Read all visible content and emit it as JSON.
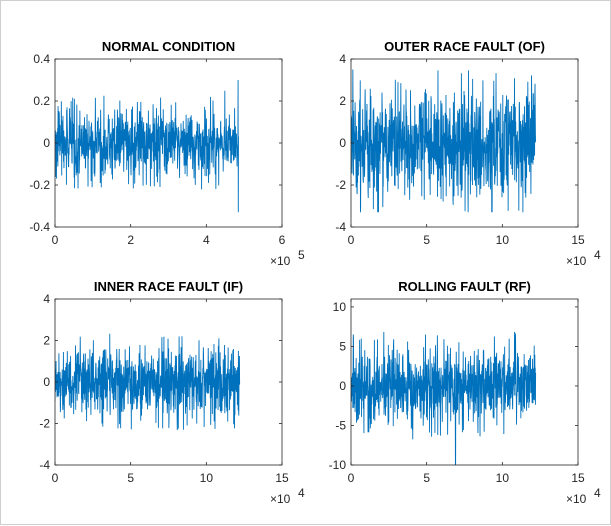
{
  "chart_data": [
    {
      "type": "line",
      "title": "NORMAL CONDITION",
      "series_color": "#0072bd",
      "x_exponent_label": "×10",
      "x_exponent": "5",
      "xlim": [
        0,
        6
      ],
      "ylim": [
        -0.4,
        0.4
      ],
      "x_ticks": [
        "0",
        "2",
        "4",
        "6"
      ],
      "y_ticks": [
        "-0.4",
        "-0.2",
        "0",
        "0.2",
        "0.4"
      ],
      "x_tick_values": [
        0,
        2,
        4,
        6
      ],
      "y_tick_values": [
        -0.4,
        -0.2,
        0,
        0.2,
        0.4
      ],
      "signal": {
        "x_end": 4.85,
        "band": 0.18,
        "peak": 0.3,
        "min_peak": -0.33,
        "spike_x": 4.85
      }
    },
    {
      "type": "line",
      "title": "OUTER RACE FAULT (OF)",
      "series_color": "#0072bd",
      "x_exponent_label": "×10",
      "x_exponent": "4",
      "xlim": [
        0,
        15
      ],
      "ylim": [
        -4,
        4
      ],
      "x_ticks": [
        "0",
        "5",
        "10",
        "15"
      ],
      "y_ticks": [
        "-4",
        "-2",
        "0",
        "2",
        "4"
      ],
      "x_tick_values": [
        0,
        5,
        10,
        15
      ],
      "y_tick_values": [
        -4,
        -2,
        0,
        2,
        4
      ],
      "signal": {
        "x_end": 12.2,
        "band": 2.9,
        "peak": 3.5,
        "min_peak": -3.3,
        "spike_x": 0
      }
    },
    {
      "type": "line",
      "title": "INNER RACE FAULT (IF)",
      "series_color": "#0072bd",
      "x_exponent_label": "×10",
      "x_exponent": "4",
      "xlim": [
        0,
        15
      ],
      "ylim": [
        -4,
        4
      ],
      "x_ticks": [
        "0",
        "5",
        "10",
        "15"
      ],
      "y_ticks": [
        "-4",
        "-2",
        "0",
        "2",
        "4"
      ],
      "x_tick_values": [
        0,
        5,
        10,
        15
      ],
      "y_tick_values": [
        -4,
        -2,
        0,
        2,
        4
      ],
      "signal": {
        "x_end": 12.2,
        "band": 1.9,
        "peak": 3.7,
        "min_peak": -3.2,
        "spike_x": 0
      }
    },
    {
      "type": "line",
      "title": "ROLLING FAULT (RF)",
      "series_color": "#0072bd",
      "x_exponent_label": "×10",
      "x_exponent": "4",
      "xlim": [
        0,
        15
      ],
      "ylim": [
        -10,
        11
      ],
      "x_ticks": [
        "0",
        "5",
        "10",
        "15"
      ],
      "y_ticks": [
        "-10",
        "-5",
        "0",
        "5",
        "10"
      ],
      "x_tick_values": [
        0,
        5,
        10,
        15
      ],
      "y_tick_values": [
        -10,
        -5,
        0,
        5,
        10
      ],
      "signal": {
        "x_end": 12.2,
        "band": 5.5,
        "peak": 10.5,
        "min_peak": -10,
        "spike_x": 6.9
      }
    }
  ]
}
